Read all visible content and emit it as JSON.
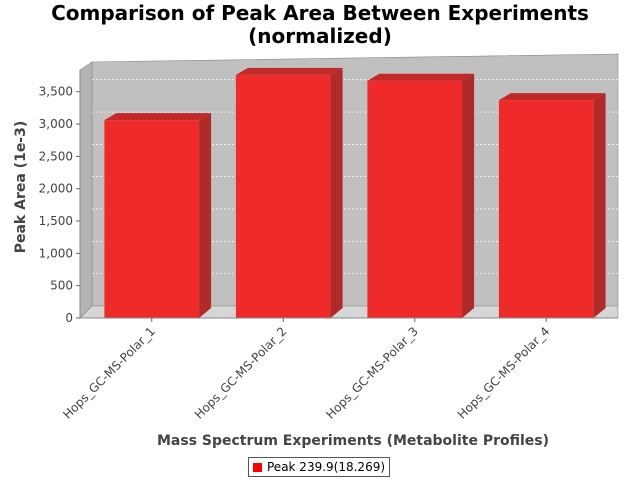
{
  "chart_data": {
    "type": "bar",
    "title_lines": [
      "Comparison of Peak Area Between Experiments",
      "(normalized)"
    ],
    "xlabel": "Mass Spectrum Experiments (Metabolite Profiles)",
    "ylabel": "Peak Area (1e-3)",
    "categories": [
      "Hops_GC-MS-Polar_1",
      "Hops_GC-MS-Polar_2",
      "Hops_GC-MS-Polar_3",
      "Hops_GC-MS-Polar_4"
    ],
    "series": [
      {
        "name": "Peak 239.9(18.269)",
        "values": [
          3060,
          3760,
          3670,
          3370
        ],
        "color": "#ee2a2a"
      }
    ],
    "yticks": [
      0,
      500,
      1000,
      1500,
      2000,
      2500,
      3000,
      3500
    ],
    "ytick_labels": [
      "0",
      "500",
      "1,000",
      "1,500",
      "2,000",
      "2,500",
      "3,000",
      "3,500"
    ],
    "ylim": [
      0,
      3960
    ],
    "grid": true,
    "legend_position": "bottom-center",
    "style": "3d"
  }
}
